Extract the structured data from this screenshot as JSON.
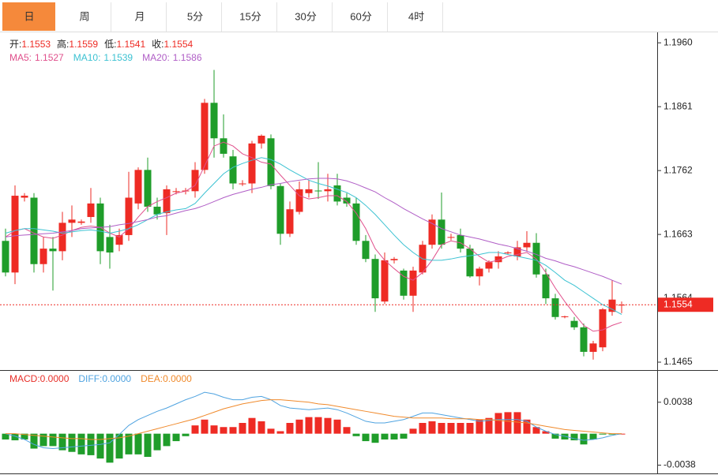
{
  "tabs": [
    "日",
    "周",
    "月",
    "5分",
    "15分",
    "30分",
    "60分",
    "4时"
  ],
  "active_tab": 0,
  "chart_data": [
    {
      "type": "candlestick",
      "ohlc_names": [
        "开:",
        "高:",
        "低:",
        "收:"
      ],
      "up_color": "#ee2b24",
      "down_color": "#1f9d2a",
      "ohlc": [
        [
          1.1653,
          1.1672,
          1.1598,
          1.1604
        ],
        [
          1.1604,
          1.1739,
          1.1586,
          1.1723
        ],
        [
          1.172,
          1.1727,
          1.1714,
          1.1723
        ],
        [
          1.172,
          1.1727,
          1.1604,
          1.1617
        ],
        [
          1.1617,
          1.1659,
          1.1604,
          1.1641
        ],
        [
          1.1641,
          1.1659,
          1.1576,
          1.1637
        ],
        [
          1.1637,
          1.1698,
          1.1623,
          1.1681
        ],
        [
          1.1681,
          1.1708,
          1.1659,
          1.1686
        ],
        [
          1.1681,
          1.1686,
          1.1678,
          1.1683
        ],
        [
          1.169,
          1.1735,
          1.1681,
          1.1711
        ],
        [
          1.1711,
          1.172,
          1.1617,
          1.1637
        ],
        [
          1.1659,
          1.1678,
          1.161,
          1.1635
        ],
        [
          1.1647,
          1.1672,
          1.1637,
          1.1662
        ],
        [
          1.1662,
          1.176,
          1.1653,
          1.172
        ],
        [
          1.1711,
          1.1767,
          1.1702,
          1.1763
        ],
        [
          1.1763,
          1.1782,
          1.1698,
          1.1706
        ],
        [
          1.1706,
          1.172,
          1.1686,
          1.1694
        ],
        [
          1.1696,
          1.1739,
          1.1662,
          1.1733
        ],
        [
          1.173,
          1.1735,
          1.1725,
          1.173
        ],
        [
          1.173,
          1.1735,
          1.1725,
          1.1731
        ],
        [
          1.173,
          1.1775,
          1.172,
          1.1763
        ],
        [
          1.1763,
          1.1873,
          1.1757,
          1.1867
        ],
        [
          1.1867,
          1.1918,
          1.1782,
          1.1812
        ],
        [
          1.1812,
          1.1849,
          1.1782,
          1.1788
        ],
        [
          1.1784,
          1.1794,
          1.1733,
          1.1742
        ],
        [
          1.1742,
          1.1747,
          1.1738,
          1.1742
        ],
        [
          1.1742,
          1.1808,
          1.1727,
          1.1804
        ],
        [
          1.1804,
          1.1818,
          1.1796,
          1.1816
        ],
        [
          1.1812,
          1.1818,
          1.1733,
          1.1738
        ],
        [
          1.1738,
          1.1742,
          1.1647,
          1.1664
        ],
        [
          1.1664,
          1.1714,
          1.1659,
          1.1702
        ],
        [
          1.1698,
          1.1745,
          1.1694,
          1.1733
        ],
        [
          1.1727,
          1.1747,
          1.172,
          1.1733
        ],
        [
          1.1731,
          1.1775,
          1.1718,
          1.173
        ],
        [
          1.173,
          1.1757,
          1.1714,
          1.1733
        ],
        [
          1.1739,
          1.1757,
          1.1708,
          1.1714
        ],
        [
          1.172,
          1.1727,
          1.1706,
          1.1711
        ],
        [
          1.1711,
          1.172,
          1.1647,
          1.1653
        ],
        [
          1.1653,
          1.1662,
          1.162,
          1.1625
        ],
        [
          1.1625,
          1.1632,
          1.1543,
          1.1564
        ],
        [
          1.1559,
          1.1635,
          1.1555,
          1.1623
        ],
        [
          1.1623,
          1.1628,
          1.1618,
          1.1625
        ],
        [
          1.1607,
          1.161,
          1.1562,
          1.1568
        ],
        [
          1.1568,
          1.1613,
          1.1543,
          1.1607
        ],
        [
          1.1604,
          1.1653,
          1.1601,
          1.1647
        ],
        [
          1.1647,
          1.1694,
          1.1641,
          1.1686
        ],
        [
          1.1686,
          1.1728,
          1.1641,
          1.1647
        ],
        [
          1.1659,
          1.1664,
          1.1654,
          1.1659
        ],
        [
          1.1662,
          1.1672,
          1.1635,
          1.1641
        ],
        [
          1.1641,
          1.1647,
          1.1596,
          1.1598
        ],
        [
          1.1598,
          1.1613,
          1.1584,
          1.161
        ],
        [
          1.161,
          1.1623,
          1.1604,
          1.162
        ],
        [
          1.162,
          1.1637,
          1.161,
          1.1629
        ],
        [
          1.1635,
          1.1637,
          1.1632,
          1.1635
        ],
        [
          1.1629,
          1.1653,
          1.1623,
          1.1643
        ],
        [
          1.1643,
          1.1668,
          1.1637,
          1.165
        ],
        [
          1.165,
          1.1665,
          1.1596,
          1.1601
        ],
        [
          1.1601,
          1.161,
          1.1555,
          1.1564
        ],
        [
          1.1564,
          1.1571,
          1.1531,
          1.1535
        ],
        [
          1.1536,
          1.1537,
          1.1533,
          1.1536
        ],
        [
          1.1529,
          1.1535,
          1.1515,
          1.1519
        ],
        [
          1.1519,
          1.1525,
          1.1474,
          1.1481
        ],
        [
          1.1481,
          1.1498,
          1.1469,
          1.1494
        ],
        [
          1.1488,
          1.1549,
          1.1482,
          1.1547
        ],
        [
          1.1543,
          1.1592,
          1.1537,
          1.1562
        ],
        [
          1.1553,
          1.1559,
          1.1541,
          1.1554
        ]
      ],
      "ma": [
        {
          "name": "MA5:",
          "color": "#e0508c",
          "values": [
            1.1659,
            1.1669,
            1.1672,
            1.1665,
            1.1659,
            1.1657,
            1.1662,
            1.1669,
            1.1674,
            1.1676,
            1.1674,
            1.1665,
            1.1659,
            1.1672,
            1.169,
            1.1706,
            1.1714,
            1.172,
            1.1727,
            1.173,
            1.1739,
            1.1769,
            1.18,
            1.1806,
            1.18,
            1.1788,
            1.1782,
            1.1775,
            1.1772,
            1.1755,
            1.1739,
            1.1723,
            1.1718,
            1.172,
            1.1723,
            1.1723,
            1.1714,
            1.1696,
            1.1672,
            1.1641,
            1.1623,
            1.161,
            1.1598,
            1.1592,
            1.1604,
            1.1623,
            1.1647,
            1.1653,
            1.165,
            1.1641,
            1.1629,
            1.162,
            1.1623,
            1.1629,
            1.1632,
            1.1635,
            1.1625,
            1.1604,
            1.158,
            1.1559,
            1.154,
            1.1522,
            1.1513,
            1.1515,
            1.1522,
            1.1527
          ]
        },
        {
          "name": "MA10:",
          "color": "#3cc2d2",
          "values": [
            1.1665,
            1.1669,
            1.1672,
            1.1672,
            1.167,
            1.1668,
            1.1665,
            1.1667,
            1.1669,
            1.167,
            1.1668,
            1.1665,
            1.1668,
            1.1672,
            1.1678,
            1.1686,
            1.1694,
            1.1698,
            1.1701,
            1.1703,
            1.1711,
            1.1727,
            1.1742,
            1.1757,
            1.1767,
            1.1773,
            1.1778,
            1.1782,
            1.1779,
            1.1772,
            1.1763,
            1.1755,
            1.1747,
            1.1742,
            1.1738,
            1.1733,
            1.1728,
            1.172,
            1.1708,
            1.1694,
            1.1678,
            1.1662,
            1.1647,
            1.1635,
            1.1625,
            1.1623,
            1.1623,
            1.1625,
            1.1628,
            1.163,
            1.1632,
            1.1635,
            1.1635,
            1.1632,
            1.1629,
            1.1626,
            1.1623,
            1.1615,
            1.1604,
            1.1592,
            1.1584,
            1.1574,
            1.1564,
            1.1554,
            1.1547,
            1.1539
          ]
        },
        {
          "name": "MA20:",
          "color": "#b05ec6",
          "values": [
            1.1659,
            1.1661,
            1.1662,
            1.1663,
            1.1664,
            1.1665,
            1.1667,
            1.1669,
            1.1672,
            1.1673,
            1.1674,
            1.1675,
            1.1678,
            1.168,
            1.1683,
            1.1686,
            1.169,
            1.1692,
            1.1696,
            1.17,
            1.1703,
            1.1708,
            1.1714,
            1.172,
            1.1725,
            1.1729,
            1.1733,
            1.1736,
            1.174,
            1.1742,
            1.1745,
            1.1747,
            1.1749,
            1.175,
            1.175,
            1.1749,
            1.1746,
            1.1741,
            1.1735,
            1.1729,
            1.172,
            1.1712,
            1.1703,
            1.1695,
            1.1687,
            1.168,
            1.1672,
            1.1667,
            1.1662,
            1.1659,
            1.1656,
            1.1652,
            1.1648,
            1.1645,
            1.1641,
            1.1637,
            1.1632,
            1.1626,
            1.1622,
            1.1617,
            1.1613,
            1.1608,
            1.1603,
            1.1598,
            1.1592,
            1.1586
          ]
        }
      ],
      "ylim": [
        1.1454,
        1.1975
      ],
      "yticks": [
        {
          "value": 1.196,
          "label": "1.1960"
        },
        1.1861,
        1.1762,
        1.1663,
        1.1564,
        1.1465
      ],
      "last_price": 1.1554,
      "last_price_color": "#ee2b24"
    },
    {
      "type": "macd",
      "up_color": "#ee2b24",
      "down_color": "#1f9d2a",
      "series": [
        {
          "name": "MACD:",
          "kind": "bar",
          "color": "#e8302a",
          "value_label": "0.0000",
          "values": [
            -0.0007,
            -0.0008,
            -0.0007,
            -0.0018,
            -0.0015,
            -0.0015,
            -0.002,
            -0.0022,
            -0.0025,
            -0.0026,
            -0.003,
            -0.0035,
            -0.003,
            -0.0025,
            -0.0025,
            -0.0028,
            -0.002,
            -0.0015,
            -0.0009,
            -0.0003,
            0.001,
            0.0017,
            0.001,
            0.0008,
            0.0008,
            0.0013,
            0.0019,
            0.0015,
            0.0006,
            0.0003,
            0.0013,
            0.0017,
            0.002,
            0.002,
            0.0019,
            0.0017,
            0.0008,
            -0.0003,
            -0.0009,
            -0.0011,
            -0.0007,
            -0.0007,
            -0.0006,
            0.0006,
            0.0013,
            0.0015,
            0.0013,
            0.0013,
            0.0013,
            0.0013,
            0.0017,
            0.0019,
            0.0025,
            0.0026,
            0.0026,
            0.0017,
            0.0008,
            0.0003,
            -0.0006,
            -0.0007,
            -0.0008,
            -0.0013,
            -0.0007,
            -0.0001,
            -0.0001,
            0
          ]
        },
        {
          "name": "DIFF:",
          "kind": "line",
          "color": "#4fa3e0",
          "value_label": "0.0000",
          "values": [
            0,
            -0.0003,
            -0.0007,
            -0.0013,
            -0.0017,
            -0.0018,
            -0.0017,
            -0.0016,
            -0.0015,
            -0.0014,
            -0.0013,
            -0.0011,
            -0.0001,
            0.001,
            0.0017,
            0.0022,
            0.0027,
            0.0031,
            0.0036,
            0.0041,
            0.0045,
            0.005,
            0.0048,
            0.0044,
            0.0041,
            0.0041,
            0.0044,
            0.0045,
            0.0041,
            0.0034,
            0.0031,
            0.003,
            0.0029,
            0.003,
            0.0031,
            0.0029,
            0.0025,
            0.002,
            0.0015,
            0.0013,
            0.0013,
            0.0015,
            0.0017,
            0.0021,
            0.0025,
            0.0025,
            0.0023,
            0.0021,
            0.0019,
            0.0017,
            0.0015,
            0.0016,
            0.0017,
            0.0017,
            0.0017,
            0.0015,
            0.0008,
            0.0003,
            -0.0001,
            -0.0003,
            -0.0006,
            -0.0008,
            -0.0007,
            -0.0005,
            -0.0002,
            0
          ]
        },
        {
          "name": "DEA:",
          "kind": "line",
          "color": "#f08a2c",
          "value_label": "0.0000",
          "values": [
            0,
            0,
            -0.0001,
            -0.0002,
            -0.0003,
            -0.0004,
            -0.0005,
            -0.0006,
            -0.0006,
            -0.0007,
            -0.0007,
            -0.0006,
            -0.0005,
            -0.0003,
            0,
            0.0003,
            0.0006,
            0.0009,
            0.0012,
            0.0015,
            0.0018,
            0.0022,
            0.0026,
            0.003,
            0.0033,
            0.0036,
            0.0038,
            0.004,
            0.0041,
            0.0041,
            0.004,
            0.0039,
            0.0038,
            0.0036,
            0.0035,
            0.0033,
            0.0031,
            0.0029,
            0.0027,
            0.0025,
            0.0023,
            0.0021,
            0.002,
            0.0019,
            0.0019,
            0.0019,
            0.0019,
            0.0018,
            0.0018,
            0.0018,
            0.0017,
            0.0017,
            0.0016,
            0.0015,
            0.0014,
            0.0013,
            0.0011,
            0.0009,
            0.0007,
            0.0005,
            0.0004,
            0.0003,
            0.0002,
            0.0001,
            0,
            0
          ]
        }
      ],
      "ylim": [
        -0.0048,
        0.0074
      ],
      "yticks": [
        {
          "value": 0.0038,
          "label": "0.0038"
        },
        {
          "value": -0.0038,
          "label": "-0.0038"
        }
      ]
    }
  ]
}
